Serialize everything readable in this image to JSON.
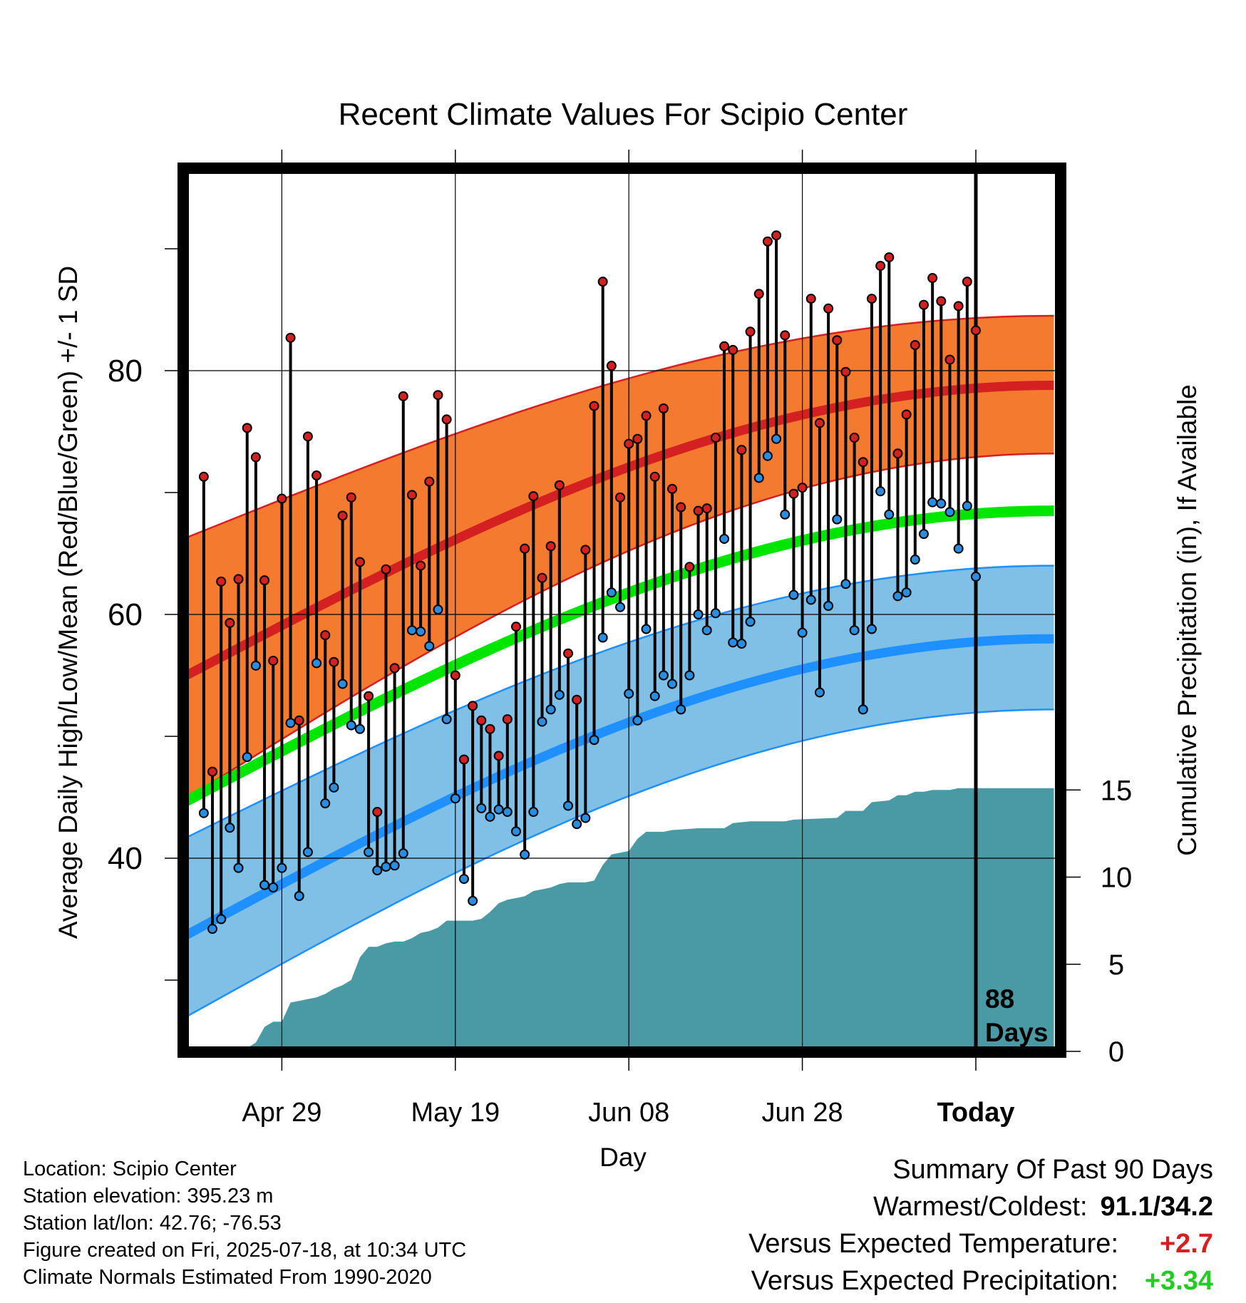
{
  "chart_data": {
    "type": "line",
    "title": "Recent Climate Values For Scipio Center",
    "xlabel": "Day",
    "ylabel": "Average Daily High/Low/Mean (Red/Blue/Green) +/- 1 SD",
    "y2label": "Cumulative Precipitation (in), If Available",
    "xticks": [
      "Apr 29",
      "May 19",
      "Jun 08",
      "Jun 28",
      "Today"
    ],
    "yticks": [
      40,
      60,
      80
    ],
    "y2ticks": [
      0,
      5,
      10,
      15
    ],
    "today_label_1": "88",
    "today_label_2": "Days",
    "grid": true,
    "ylim": [
      25,
      97
    ],
    "y2lim": [
      0,
      50
    ],
    "x_range_days_relative_to_today": [
      -91,
      9
    ],
    "colors": {
      "high_band": "#f47a30",
      "high_mean": "#d42020",
      "mean": "#00e600",
      "low_band": "#80c0e6",
      "low_mean": "#1e90ff",
      "precip": "#4a9aa5",
      "high_point": "#d42020",
      "low_point": "#2a8ee0"
    },
    "normals": {
      "start_day": -91,
      "end_day": 9,
      "high_mean": [
        55.0,
        78.8
      ],
      "high_sd_upper": [
        66.3,
        84.5
      ],
      "high_sd_lower": [
        44.9,
        73.2
      ],
      "avg_mean": [
        44.7,
        68.5
      ],
      "low_mean": [
        33.7,
        58.0
      ],
      "low_sd_upper": [
        41.7,
        64.0
      ],
      "low_sd_lower": [
        27.0,
        52.2
      ]
    },
    "series": [
      {
        "name": "High",
        "values": [
          71.3,
          47.1,
          62.7,
          59.3,
          62.9,
          75.3,
          72.9,
          62.8,
          56.2,
          69.5,
          82.7,
          51.3,
          74.6,
          71.4,
          58.3,
          56.1,
          68.1,
          69.6,
          64.3,
          53.3,
          43.8,
          63.7,
          55.6,
          77.9,
          69.8,
          64.0,
          70.9,
          78.0,
          76.0,
          55.0,
          48.1,
          52.5,
          51.3,
          50.6,
          48.4,
          51.4,
          59.0,
          65.4,
          69.7,
          63.0,
          65.6,
          70.6,
          56.8,
          53.0,
          65.3,
          77.1,
          87.3,
          80.4,
          69.6,
          74.0,
          74.4,
          76.3,
          71.3,
          76.9,
          70.3,
          68.8,
          63.9,
          68.5,
          68.7,
          74.5,
          82.0,
          81.7,
          73.5,
          83.2,
          86.3,
          90.6,
          91.1,
          82.9,
          69.9,
          70.4,
          85.9,
          75.7,
          85.1,
          82.5,
          79.9,
          74.5,
          72.5,
          85.9,
          88.6,
          89.3,
          73.2,
          76.4,
          82.1,
          85.4,
          87.6,
          85.7,
          80.9,
          85.3,
          87.3,
          83.3
        ]
      },
      {
        "name": "Low",
        "values": [
          43.7,
          34.2,
          35.0,
          42.5,
          39.2,
          48.3,
          55.8,
          37.8,
          37.6,
          39.2,
          51.1,
          36.9,
          40.5,
          56.0,
          44.5,
          45.8,
          54.3,
          50.9,
          50.6,
          40.5,
          39.0,
          39.3,
          39.4,
          40.4,
          58.7,
          58.6,
          57.4,
          60.4,
          51.4,
          44.9,
          38.3,
          36.5,
          44.1,
          43.4,
          44.0,
          43.8,
          42.2,
          40.3,
          43.8,
          51.2,
          52.2,
          53.4,
          44.3,
          42.8,
          43.3,
          49.7,
          58.1,
          61.8,
          60.6,
          53.5,
          51.3,
          58.8,
          53.3,
          55.0,
          54.3,
          52.2,
          55.0,
          60.0,
          58.7,
          60.1,
          66.2,
          57.7,
          57.6,
          59.4,
          71.2,
          73.0,
          74.4,
          68.2,
          61.6,
          58.5,
          61.2,
          53.6,
          60.7,
          67.8,
          62.5,
          58.7,
          52.2,
          58.8,
          70.1,
          68.2,
          61.5,
          61.8,
          64.5,
          66.6,
          69.2,
          69.1,
          68.4,
          65.4,
          68.9,
          63.1
        ]
      }
    ],
    "precip_cumulative": [
      [
        -90,
        0.1
      ],
      [
        -89,
        0.1
      ],
      [
        -88,
        0.2
      ],
      [
        -86,
        0.2
      ],
      [
        -84,
        0.2
      ],
      [
        -83,
        0.5
      ],
      [
        -82,
        1.4
      ],
      [
        -81,
        1.7
      ],
      [
        -80,
        1.7
      ],
      [
        -79,
        2.8
      ],
      [
        -78,
        2.9
      ],
      [
        -77,
        3.0
      ],
      [
        -76,
        3.1
      ],
      [
        -75,
        3.3
      ],
      [
        -74,
        3.6
      ],
      [
        -73,
        3.8
      ],
      [
        -72,
        4.1
      ],
      [
        -71,
        5.4
      ],
      [
        -70,
        6.0
      ],
      [
        -69,
        6.0
      ],
      [
        -68,
        6.2
      ],
      [
        -67,
        6.3
      ],
      [
        -66,
        6.3
      ],
      [
        -65,
        6.5
      ],
      [
        -64,
        6.8
      ],
      [
        -63,
        6.9
      ],
      [
        -62,
        7.1
      ],
      [
        -61,
        7.5
      ],
      [
        -60,
        7.5
      ],
      [
        -58,
        7.5
      ],
      [
        -57,
        7.6
      ],
      [
        -56,
        8.0
      ],
      [
        -55,
        8.5
      ],
      [
        -54,
        8.7
      ],
      [
        -53,
        8.8
      ],
      [
        -52,
        8.9
      ],
      [
        -51,
        9.2
      ],
      [
        -50,
        9.3
      ],
      [
        -49,
        9.4
      ],
      [
        -48,
        9.6
      ],
      [
        -47,
        9.7
      ],
      [
        -45,
        9.7
      ],
      [
        -44,
        9.8
      ],
      [
        -43,
        10.7
      ],
      [
        -42,
        11.3
      ],
      [
        -41,
        11.4
      ],
      [
        -40,
        11.5
      ],
      [
        -39,
        12.2
      ],
      [
        -38,
        12.6
      ],
      [
        -36,
        12.6
      ],
      [
        -35,
        12.7
      ],
      [
        -32,
        12.8
      ],
      [
        -29,
        12.8
      ],
      [
        -28,
        13.1
      ],
      [
        -26,
        13.2
      ],
      [
        -22,
        13.2
      ],
      [
        -21,
        13.3
      ],
      [
        -16,
        13.4
      ],
      [
        -15,
        13.8
      ],
      [
        -13,
        13.8
      ],
      [
        -12,
        14.3
      ],
      [
        -10,
        14.4
      ],
      [
        -9,
        14.7
      ],
      [
        -8,
        14.7
      ],
      [
        -7,
        14.9
      ],
      [
        -6,
        14.9
      ],
      [
        -5,
        15.0
      ],
      [
        -3,
        15.0
      ],
      [
        -2,
        15.1
      ],
      [
        0,
        15.1
      ],
      [
        9,
        15.1
      ]
    ]
  },
  "info": {
    "location": "Location: Scipio Center",
    "elevation": "Station elevation: 395.23 m",
    "latlon": "Station lat/lon: 42.76; -76.53",
    "created": "Figure created on Fri, 2025-07-18, at 10:34 UTC",
    "normals": "Climate Normals Estimated From 1990-2020"
  },
  "summary": {
    "heading": "Summary Of Past 90 Days",
    "warm_cold_label": "Warmest/Coldest:",
    "warm_cold_value": "91.1/34.2",
    "temp_label": "Versus Expected Temperature:",
    "temp_value": "+2.7",
    "temp_color": "#d42020",
    "precip_label": "Versus Expected Precipitation:",
    "precip_value": "+3.34",
    "precip_color": "#22cc22"
  }
}
